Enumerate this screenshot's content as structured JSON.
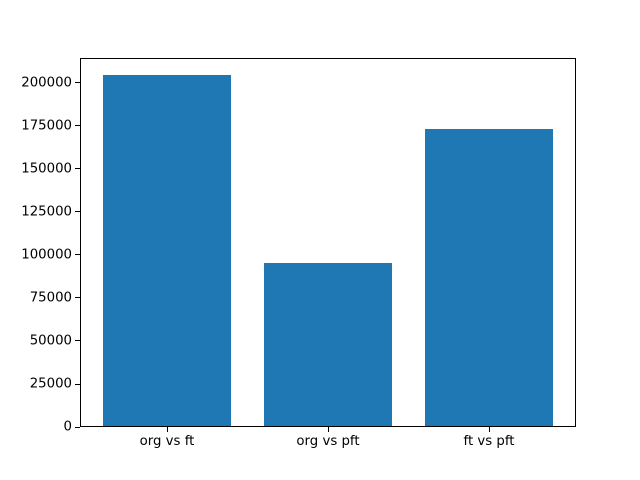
{
  "chart_data": {
    "type": "bar",
    "title": "",
    "xlabel": "",
    "ylabel": "",
    "categories": [
      "org vs ft",
      "org vs pft",
      "ft vs pft"
    ],
    "values": [
      204600,
      95400,
      172900
    ],
    "ylim": [
      0,
      214300
    ],
    "yticks": [
      0,
      25000,
      50000,
      75000,
      100000,
      125000,
      150000,
      175000,
      200000
    ],
    "ytick_labels": [
      "0",
      "25000",
      "50000",
      "75000",
      "100000",
      "125000",
      "150000",
      "175000",
      "200000"
    ],
    "bar_color": "#1f77b4",
    "grid": false,
    "legend": false
  },
  "colors": {
    "background": "#ffffff",
    "frame": "#000000",
    "text": "#000000"
  }
}
